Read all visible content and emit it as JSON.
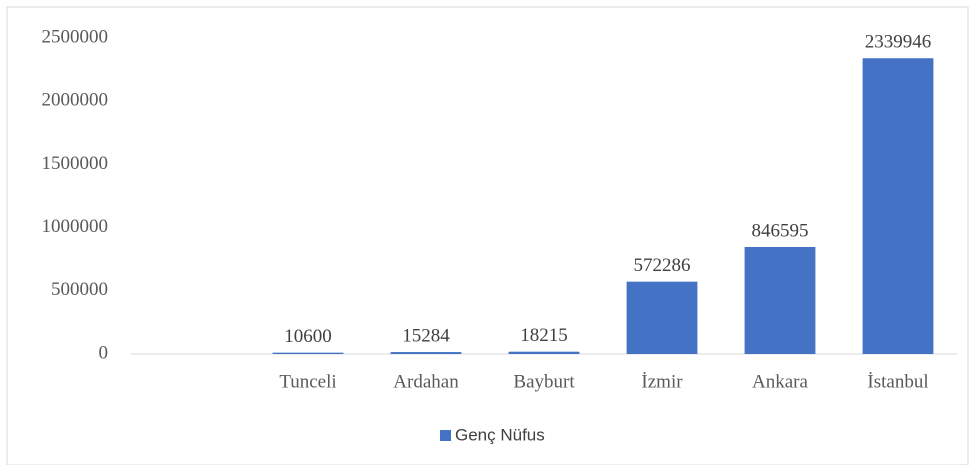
{
  "chart_data": {
    "type": "bar",
    "categories": [
      null,
      "Tunceli",
      "Ardahan",
      "Bayburt",
      "İzmir",
      "Ankara",
      "İstanbul"
    ],
    "series": [
      {
        "name": "Genç Nüfus",
        "color": "#4472c4",
        "values": [
          null,
          10600,
          15284,
          18215,
          572286,
          846595,
          2339946
        ]
      }
    ],
    "ylim": [
      0,
      2500000
    ],
    "yticks": [
      0,
      500000,
      1000000,
      1500000,
      2000000,
      2500000
    ],
    "grid": false,
    "legend": "bottom",
    "value_labels_shown": true
  }
}
